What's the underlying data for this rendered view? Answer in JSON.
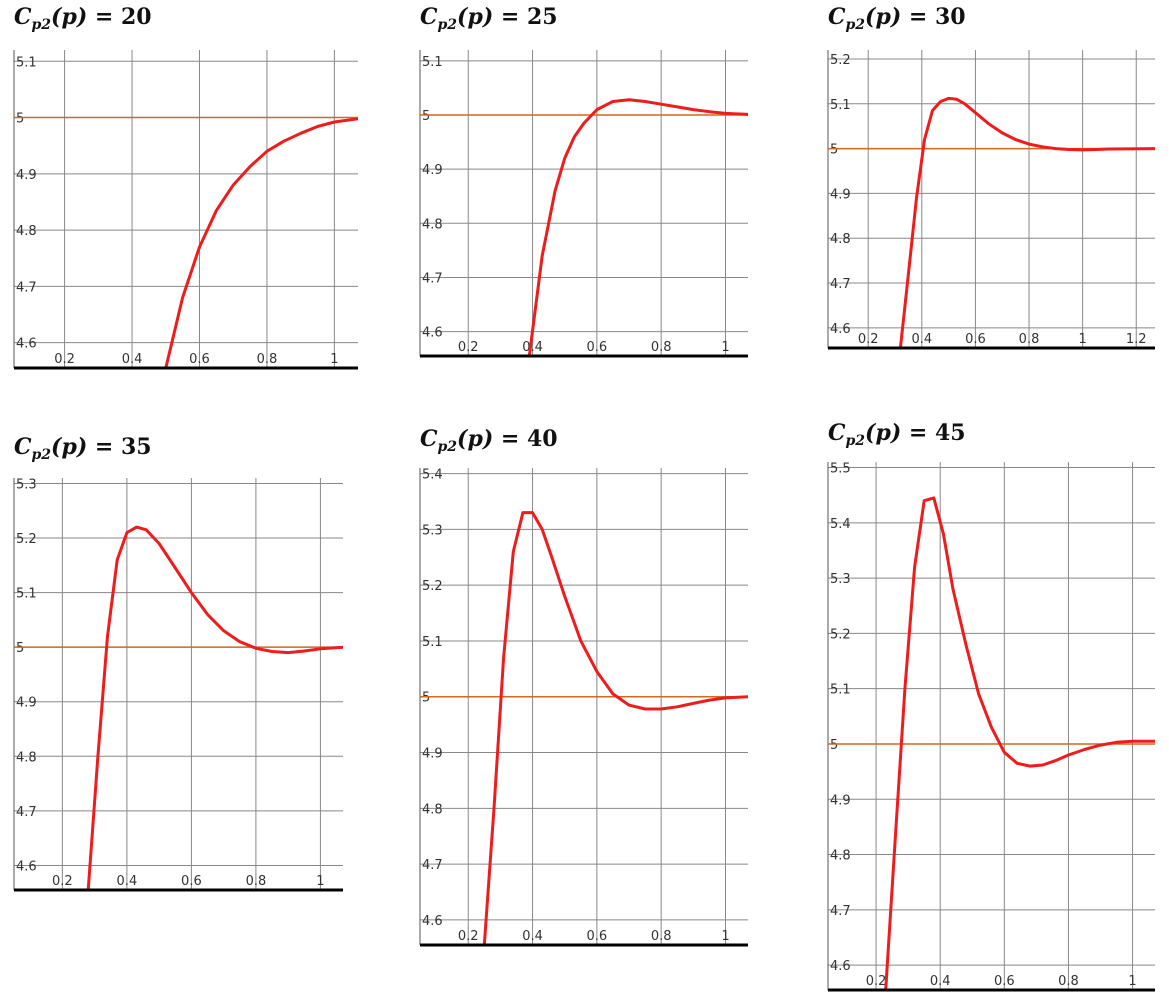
{
  "colors": {
    "curve": "#ee1c1c",
    "reference": "#d2691e",
    "grid": "#888888",
    "axis": "#000000"
  },
  "chart_data": [
    {
      "type": "line",
      "title": {
        "C": "C",
        "sub": "p2",
        "arg": "(p) = ",
        "value": "20"
      },
      "xlim": [
        0.05,
        1.07
      ],
      "ylim": [
        4.555,
        5.12
      ],
      "xticks": [
        "0.2",
        "0.4",
        "0.6",
        "0.8",
        "1"
      ],
      "xtick_values": [
        0.2,
        0.4,
        0.6,
        0.8,
        1.0
      ],
      "yticks": [
        "4.6",
        "4.7",
        "4.8",
        "4.9",
        "5",
        "5.1"
      ],
      "ytick_values": [
        4.6,
        4.7,
        4.8,
        4.9,
        5.0,
        5.1
      ],
      "reference_y": 5.0,
      "x": [
        0.5,
        0.55,
        0.6,
        0.65,
        0.7,
        0.75,
        0.8,
        0.85,
        0.9,
        0.95,
        1.0,
        1.07
      ],
      "y": [
        4.555,
        4.68,
        4.77,
        4.835,
        4.88,
        4.913,
        4.94,
        4.958,
        4.972,
        4.984,
        4.992,
        4.998
      ]
    },
    {
      "type": "line",
      "title": {
        "C": "C",
        "sub": "p2",
        "arg": "(p) = ",
        "value": "25"
      },
      "xlim": [
        0.05,
        1.07
      ],
      "ylim": [
        4.555,
        5.12
      ],
      "xticks": [
        "0.2",
        "0.4",
        "0.6",
        "0.8",
        "1"
      ],
      "xtick_values": [
        0.2,
        0.4,
        0.6,
        0.8,
        1.0
      ],
      "yticks": [
        "4.6",
        "4.7",
        "4.8",
        "4.9",
        "5",
        "5.1"
      ],
      "ytick_values": [
        4.6,
        4.7,
        4.8,
        4.9,
        5.0,
        5.1
      ],
      "reference_y": 5.0,
      "x": [
        0.39,
        0.43,
        0.47,
        0.5,
        0.53,
        0.56,
        0.6,
        0.65,
        0.7,
        0.75,
        0.8,
        0.85,
        0.9,
        0.95,
        1.0,
        1.07
      ],
      "y": [
        4.555,
        4.74,
        4.86,
        4.92,
        4.96,
        4.985,
        5.01,
        5.025,
        5.028,
        5.025,
        5.02,
        5.015,
        5.01,
        5.006,
        5.003,
        5.001
      ]
    },
    {
      "type": "line",
      "title": {
        "C": "C",
        "sub": "p2",
        "arg": "(p) = ",
        "value": "30"
      },
      "xlim": [
        0.05,
        1.27
      ],
      "ylim": [
        4.555,
        5.22
      ],
      "xticks": [
        "0.2",
        "0.4",
        "0.6",
        "0.8",
        "1",
        "1.2"
      ],
      "xtick_values": [
        0.2,
        0.4,
        0.6,
        0.8,
        1.0,
        1.2
      ],
      "yticks": [
        "4.6",
        "4.7",
        "4.8",
        "4.9",
        "5",
        "5.1",
        "5.2"
      ],
      "ytick_values": [
        4.6,
        4.7,
        4.8,
        4.9,
        5.0,
        5.1,
        5.2
      ],
      "reference_y": 5.0,
      "x": [
        0.32,
        0.35,
        0.38,
        0.41,
        0.44,
        0.47,
        0.5,
        0.53,
        0.56,
        0.6,
        0.65,
        0.7,
        0.75,
        0.8,
        0.85,
        0.9,
        0.95,
        1.0,
        1.05,
        1.1,
        1.27
      ],
      "y": [
        4.555,
        4.72,
        4.89,
        5.02,
        5.085,
        5.105,
        5.112,
        5.11,
        5.1,
        5.08,
        5.055,
        5.035,
        5.02,
        5.01,
        5.004,
        5.0,
        4.998,
        4.997,
        4.998,
        4.999,
        5.0
      ]
    },
    {
      "type": "line",
      "title": {
        "C": "C",
        "sub": "p2",
        "arg": "(p) = ",
        "value": "35"
      },
      "xlim": [
        0.05,
        1.07
      ],
      "ylim": [
        4.555,
        5.31
      ],
      "xticks": [
        "0.2",
        "0.4",
        "0.6",
        "0.8",
        "1"
      ],
      "xtick_values": [
        0.2,
        0.4,
        0.6,
        0.8,
        1.0
      ],
      "yticks": [
        "4.6",
        "4.7",
        "4.8",
        "4.9",
        "5",
        "5.1",
        "5.2",
        "5.3"
      ],
      "ytick_values": [
        4.6,
        4.7,
        4.8,
        4.9,
        5.0,
        5.1,
        5.2,
        5.3
      ],
      "reference_y": 5.0,
      "x": [
        0.28,
        0.31,
        0.34,
        0.37,
        0.4,
        0.43,
        0.46,
        0.5,
        0.55,
        0.6,
        0.65,
        0.7,
        0.75,
        0.8,
        0.85,
        0.9,
        0.95,
        1.0,
        1.07
      ],
      "y": [
        4.555,
        4.8,
        5.02,
        5.16,
        5.21,
        5.22,
        5.215,
        5.19,
        5.145,
        5.1,
        5.06,
        5.03,
        5.01,
        4.998,
        4.992,
        4.99,
        4.993,
        4.997,
        5.0
      ]
    },
    {
      "type": "line",
      "title": {
        "C": "C",
        "sub": "p2",
        "arg": "(p) = ",
        "value": "40"
      },
      "xlim": [
        0.05,
        1.07
      ],
      "ylim": [
        4.555,
        5.41
      ],
      "xticks": [
        "0.2",
        "0.4",
        "0.6",
        "0.8",
        "1"
      ],
      "xtick_values": [
        0.2,
        0.4,
        0.6,
        0.8,
        1.0
      ],
      "yticks": [
        "4.6",
        "4.7",
        "4.8",
        "4.9",
        "5",
        "5.1",
        "5.2",
        "5.3",
        "5.4"
      ],
      "ytick_values": [
        4.6,
        4.7,
        4.8,
        4.9,
        5.0,
        5.1,
        5.2,
        5.3,
        5.4
      ],
      "reference_y": 5.0,
      "x": [
        0.25,
        0.28,
        0.31,
        0.34,
        0.37,
        0.4,
        0.43,
        0.46,
        0.5,
        0.55,
        0.6,
        0.65,
        0.7,
        0.75,
        0.8,
        0.85,
        0.9,
        0.95,
        1.0,
        1.07
      ],
      "y": [
        4.555,
        4.8,
        5.07,
        5.26,
        5.33,
        5.33,
        5.3,
        5.25,
        5.18,
        5.1,
        5.045,
        5.005,
        4.985,
        4.978,
        4.978,
        4.982,
        4.988,
        4.994,
        4.998,
        5.0
      ]
    },
    {
      "type": "line",
      "title": {
        "C": "C",
        "sub": "p2",
        "arg": "(p) = ",
        "value": "45"
      },
      "xlim": [
        0.05,
        1.07
      ],
      "ylim": [
        4.555,
        5.51
      ],
      "xticks": [
        "0.2",
        "0.4",
        "0.6",
        "0.8",
        "1"
      ],
      "xtick_values": [
        0.2,
        0.4,
        0.6,
        0.8,
        1.0
      ],
      "yticks": [
        "4.6",
        "4.7",
        "4.8",
        "4.9",
        "5",
        "5.1",
        "5.2",
        "5.3",
        "5.4",
        "5.5"
      ],
      "ytick_values": [
        4.6,
        4.7,
        4.8,
        4.9,
        5.0,
        5.1,
        5.2,
        5.3,
        5.4,
        5.5
      ],
      "reference_y": 5.0,
      "x": [
        0.23,
        0.26,
        0.29,
        0.32,
        0.35,
        0.38,
        0.41,
        0.44,
        0.48,
        0.52,
        0.56,
        0.6,
        0.64,
        0.68,
        0.72,
        0.76,
        0.8,
        0.85,
        0.9,
        0.95,
        1.0,
        1.07
      ],
      "y": [
        4.555,
        4.83,
        5.1,
        5.32,
        5.44,
        5.445,
        5.38,
        5.28,
        5.18,
        5.09,
        5.03,
        4.985,
        4.965,
        4.96,
        4.962,
        4.97,
        4.98,
        4.99,
        4.998,
        5.003,
        5.005,
        5.005
      ]
    }
  ]
}
